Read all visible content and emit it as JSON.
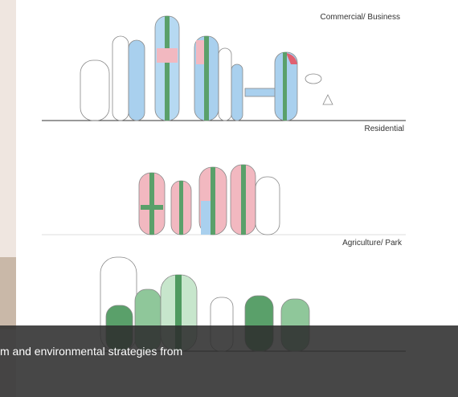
{
  "image": {
    "labels": [
      "Commercial/ Business",
      "Residential",
      "Agriculture/ Park"
    ]
  },
  "caption": {
    "text": "m and environmental strategies from"
  }
}
